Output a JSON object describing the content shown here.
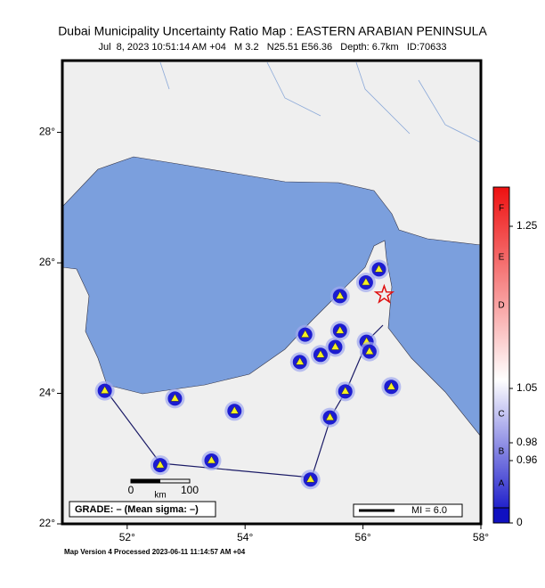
{
  "header": {
    "title": "Dubai Municipality Uncertainty Ratio Map : EASTERN ARABIAN PENINSULA",
    "subtitle": "Jul  8, 2023 10:51:14 AM +04   M 3.2   N25.51 E56.36   Depth: 6.7km   ID:70633"
  },
  "map": {
    "lonlim": [
      50.9,
      58
    ],
    "latlim": [
      22,
      29.1
    ],
    "lon_ticks": [
      {
        "value": 52,
        "label": "52°"
      },
      {
        "value": 54,
        "label": "54°"
      },
      {
        "value": 56,
        "label": "56°"
      },
      {
        "value": 58,
        "label": "58°"
      }
    ],
    "lat_ticks": [
      {
        "value": 22,
        "label": "22°"
      },
      {
        "value": 24,
        "label": "24°"
      },
      {
        "value": 26,
        "label": "26°"
      },
      {
        "value": 28,
        "label": "28°"
      }
    ],
    "stations": {
      "lon": [
        51.62,
        52.81,
        53.82,
        52.56,
        53.43,
        55.11,
        55.44,
        55.7,
        54.93,
        55.28,
        55.53,
        55.61,
        55.02,
        55.61,
        56.05,
        56.27,
        56.06,
        56.11,
        56.48
      ],
      "lat": [
        24.04,
        23.92,
        23.73,
        22.9,
        22.97,
        22.68,
        23.63,
        24.03,
        24.48,
        24.59,
        24.71,
        24.96,
        24.9,
        25.49,
        25.7,
        25.9,
        24.79,
        24.64,
        24.1
      ]
    },
    "epicenter": {
      "lon": 56.36,
      "lat": 25.51
    },
    "scale_bar": {
      "labels": [
        "0",
        "100"
      ],
      "unit": "km"
    }
  },
  "colorbar": {
    "grades": [
      "F",
      "E",
      "D",
      "C",
      "B",
      "A"
    ],
    "ticks": [
      1.25,
      1.05,
      0.98,
      0.96,
      0
    ]
  },
  "legend": {
    "grade": "GRADE: – (Mean sigma: –)",
    "mi": "MI = 6.0"
  },
  "footer": "Map Version 4 Processed 2023-06-11 11:14:57 AM +04"
}
